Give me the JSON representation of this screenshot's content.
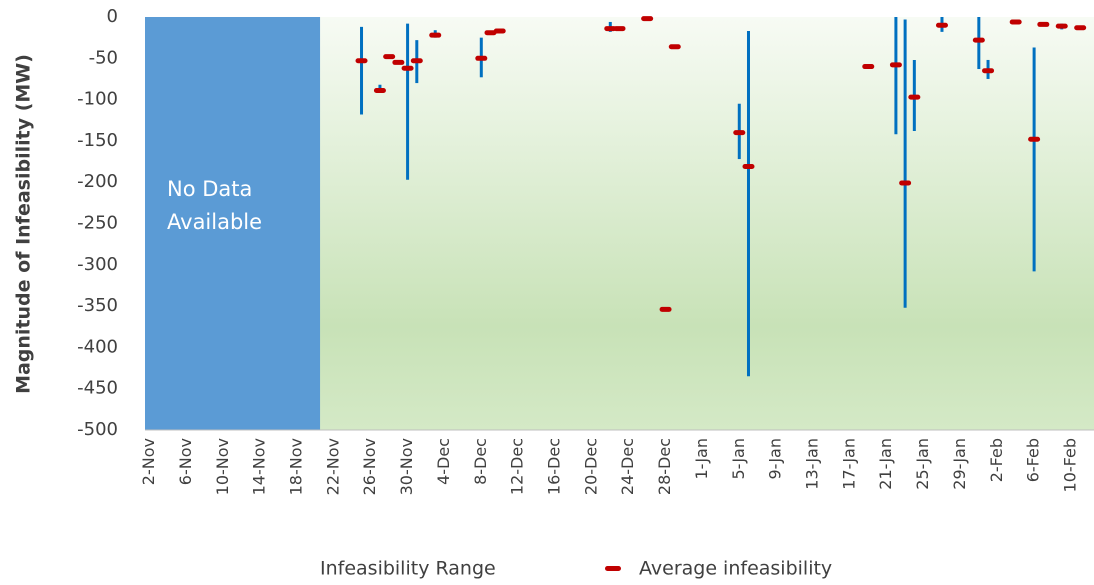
{
  "chart_data": {
    "type": "range",
    "y_label": "Magnitude of Infeasibility (MW)",
    "ylim": [
      -500,
      0
    ],
    "yticks": [
      0,
      -50,
      -100,
      -150,
      -200,
      -250,
      -300,
      -350,
      -400,
      -450,
      -500
    ],
    "no_data": {
      "label": [
        "No Data",
        "Available"
      ],
      "color": "#5b9bd5"
    },
    "categories": [
      "2-Nov",
      null,
      null,
      null,
      "6-Nov",
      null,
      null,
      null,
      "10-Nov",
      null,
      null,
      null,
      "14-Nov",
      null,
      null,
      null,
      "18-Nov",
      null,
      null,
      null,
      "22-Nov",
      null,
      null,
      null,
      "26-Nov",
      null,
      null,
      null,
      "30-Nov",
      null,
      null,
      null,
      "4-Dec",
      null,
      null,
      null,
      "8-Dec",
      null,
      null,
      null,
      "12-Dec",
      null,
      null,
      null,
      "16-Dec",
      null,
      null,
      null,
      "20-Dec",
      null,
      null,
      null,
      "24-Dec",
      null,
      null,
      null,
      "28-Dec",
      null,
      null,
      null,
      "1-Jan",
      null,
      null,
      null,
      "5-Jan",
      null,
      null,
      null,
      "9-Jan",
      null,
      null,
      null,
      "13-Jan",
      null,
      null,
      null,
      "17-Jan",
      null,
      null,
      null,
      "21-Jan",
      null,
      null,
      null,
      "25-Jan",
      null,
      null,
      null,
      "29-Jan",
      null,
      null,
      null,
      "2-Feb",
      null,
      null,
      null,
      "6-Feb",
      null,
      null,
      null,
      "10-Feb",
      null,
      null
    ],
    "series": [
      {
        "name": "Infeasibility Range",
        "color": "#0070c0",
        "high": [
          null,
          null,
          null,
          null,
          null,
          null,
          null,
          null,
          null,
          null,
          null,
          null,
          null,
          null,
          null,
          null,
          null,
          null,
          null,
          null,
          null,
          null,
          null,
          -12,
          null,
          -82,
          null,
          null,
          -8,
          -28,
          null,
          -16,
          null,
          null,
          null,
          null,
          -25,
          null,
          null,
          null,
          null,
          null,
          null,
          null,
          null,
          null,
          null,
          null,
          null,
          null,
          -6,
          null,
          null,
          null,
          null,
          null,
          null,
          null,
          null,
          null,
          null,
          null,
          null,
          null,
          -105,
          -17,
          null,
          null,
          null,
          null,
          null,
          null,
          null,
          null,
          null,
          null,
          null,
          null,
          null,
          null,
          null,
          0,
          -3,
          -52,
          null,
          null,
          0,
          null,
          null,
          null,
          0,
          -52,
          null,
          null,
          null,
          null,
          -37,
          null,
          null,
          -8,
          null,
          null,
          null
        ],
        "low": [
          null,
          null,
          null,
          null,
          null,
          null,
          null,
          null,
          null,
          null,
          null,
          null,
          null,
          null,
          null,
          null,
          null,
          null,
          null,
          null,
          null,
          null,
          null,
          -118,
          null,
          -90,
          null,
          null,
          -197,
          -80,
          null,
          -25,
          null,
          null,
          null,
          null,
          -73,
          null,
          null,
          null,
          null,
          null,
          null,
          null,
          null,
          null,
          null,
          null,
          null,
          null,
          -18,
          null,
          null,
          null,
          null,
          null,
          null,
          null,
          null,
          null,
          null,
          null,
          null,
          null,
          -172,
          -435,
          null,
          null,
          null,
          null,
          null,
          null,
          null,
          null,
          null,
          null,
          null,
          null,
          null,
          null,
          null,
          -142,
          -352,
          -138,
          null,
          null,
          -18,
          null,
          null,
          null,
          -63,
          -75,
          null,
          null,
          null,
          null,
          -308,
          null,
          null,
          -15,
          null,
          null,
          null
        ]
      },
      {
        "name": "Average infeasibility",
        "color": "#c00000",
        "values": [
          null,
          null,
          null,
          null,
          null,
          null,
          null,
          null,
          null,
          null,
          null,
          null,
          null,
          null,
          null,
          null,
          null,
          null,
          null,
          null,
          null,
          null,
          null,
          -53,
          null,
          -89,
          -48,
          -55,
          -62,
          -53,
          null,
          -22,
          null,
          null,
          null,
          null,
          -50,
          -19,
          -17,
          null,
          null,
          null,
          null,
          null,
          null,
          null,
          null,
          null,
          null,
          null,
          -14,
          -14,
          null,
          null,
          -2,
          null,
          -354,
          -36,
          null,
          null,
          null,
          null,
          null,
          null,
          -140,
          -181,
          null,
          null,
          null,
          null,
          null,
          null,
          null,
          null,
          null,
          null,
          null,
          null,
          -60,
          null,
          null,
          -58,
          -201,
          -97,
          null,
          null,
          -10,
          null,
          null,
          null,
          -28,
          -65,
          null,
          null,
          -6,
          null,
          -148,
          -9,
          null,
          -11,
          null,
          -13,
          null
        ]
      }
    ]
  }
}
